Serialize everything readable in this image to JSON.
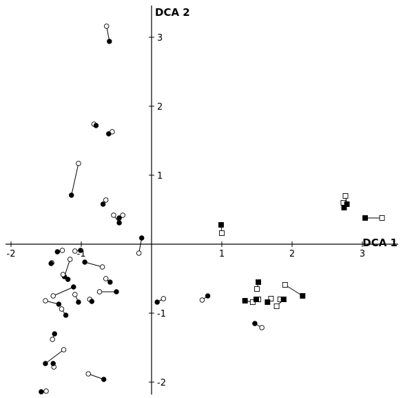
{
  "chart_data": {
    "type": "scatter",
    "title": "",
    "xlabel": "DCA 1",
    "ylabel": "DCA 2",
    "xlim": [
      -2,
      3.4
    ],
    "ylim": [
      -2,
      3.4
    ],
    "xticks": [
      -2,
      -1,
      1,
      2,
      3
    ],
    "yticks": [
      3,
      2,
      1,
      -1,
      -2
    ],
    "xtick_labels": [
      "-2",
      "-1",
      "1",
      "2",
      "3"
    ],
    "ytick_labels": [
      "3",
      "2",
      "1",
      "-1",
      "-2"
    ],
    "grid": false,
    "legend": "none",
    "marker_fill_colors": {
      "filled": "#000000",
      "open": "#ffffff"
    },
    "pairs": [
      {
        "shape": "circle",
        "filled": [
          -0.6,
          2.94
        ],
        "open": [
          -0.64,
          3.16
        ]
      },
      {
        "shape": "circle",
        "filled": [
          -0.79,
          1.72
        ],
        "open": [
          -0.82,
          1.74
        ]
      },
      {
        "shape": "circle",
        "filled": [
          -0.61,
          1.6
        ],
        "open": [
          -0.56,
          1.63
        ]
      },
      {
        "shape": "circle",
        "filled": [
          -1.14,
          0.71
        ],
        "open": [
          -1.04,
          1.17
        ]
      },
      {
        "shape": "circle",
        "filled": [
          -0.69,
          0.58
        ],
        "open": [
          -0.65,
          0.64
        ]
      },
      {
        "shape": "circle",
        "filled": [
          -0.46,
          0.31
        ],
        "open": [
          -0.54,
          0.42
        ]
      },
      {
        "shape": "circle",
        "filled": [
          -0.46,
          0.38
        ],
        "open": [
          -0.41,
          0.42
        ]
      },
      {
        "shape": "circle",
        "filled": [
          -0.14,
          0.09
        ],
        "open": [
          -0.18,
          -0.13
        ]
      },
      {
        "shape": "circle",
        "filled": [
          -1.01,
          -0.09
        ],
        "open": [
          -1.09,
          -0.1
        ]
      },
      {
        "shape": "circle",
        "filled": [
          -1.34,
          -0.11
        ],
        "open": [
          -1.27,
          -0.09
        ]
      },
      {
        "shape": "circle",
        "filled": [
          -1.43,
          -0.28
        ],
        "open": [
          -1.42,
          -0.27
        ]
      },
      {
        "shape": "circle",
        "filled": [
          -0.95,
          -0.26
        ],
        "open": [
          -0.7,
          -0.33
        ]
      },
      {
        "shape": "circle",
        "filled": [
          -1.24,
          -0.47
        ],
        "open": [
          -1.16,
          -0.22
        ]
      },
      {
        "shape": "circle",
        "filled": [
          -1.19,
          -0.51
        ],
        "open": [
          -1.26,
          -0.44
        ]
      },
      {
        "shape": "circle",
        "filled": [
          -0.59,
          -0.55
        ],
        "open": [
          -0.65,
          -0.5
        ]
      },
      {
        "shape": "circle",
        "filled": [
          -1.11,
          -0.62
        ],
        "open": [
          -1.4,
          -0.75
        ]
      },
      {
        "shape": "circle",
        "filled": [
          -0.5,
          -0.69
        ],
        "open": [
          -0.74,
          -0.69
        ]
      },
      {
        "shape": "circle",
        "filled": [
          -1.04,
          -0.84
        ],
        "open": [
          -1.09,
          -0.73
        ]
      },
      {
        "shape": "circle",
        "filled": [
          -1.32,
          -0.87
        ],
        "open": [
          -1.51,
          -0.82
        ]
      },
      {
        "shape": "circle",
        "filled": [
          -1.22,
          -1.03
        ],
        "open": [
          -1.28,
          -0.94
        ]
      },
      {
        "shape": "circle",
        "filled": [
          -0.85,
          -0.83
        ],
        "open": [
          -0.88,
          -0.8
        ]
      },
      {
        "shape": "circle",
        "filled": [
          -1.38,
          -1.3
        ],
        "open": [
          -1.41,
          -1.38
        ]
      },
      {
        "shape": "circle",
        "filled": [
          -1.51,
          -1.73
        ],
        "open": [
          -1.25,
          -1.53
        ]
      },
      {
        "shape": "circle",
        "filled": [
          -1.4,
          -1.73
        ],
        "open": [
          -1.39,
          -1.78
        ]
      },
      {
        "shape": "circle",
        "filled": [
          -0.68,
          -1.96
        ],
        "open": [
          -0.9,
          -1.88
        ]
      },
      {
        "shape": "circle",
        "filled": [
          -1.57,
          -2.14
        ],
        "open": [
          -1.5,
          -2.13
        ]
      },
      {
        "shape": "circle",
        "filled": [
          0.08,
          -0.84
        ],
        "open": [
          0.17,
          -0.79
        ]
      },
      {
        "shape": "circle",
        "filled": [
          0.8,
          -0.75
        ],
        "open": [
          0.72,
          -0.81
        ]
      },
      {
        "shape": "circle",
        "filled": [
          1.47,
          -1.15
        ],
        "open": [
          1.57,
          -1.21
        ]
      },
      {
        "shape": "square",
        "filled": [
          0.99,
          0.28
        ],
        "open": [
          1.0,
          0.16
        ]
      },
      {
        "shape": "square",
        "filled": [
          2.74,
          0.53
        ],
        "open": [
          2.73,
          0.6
        ]
      },
      {
        "shape": "square",
        "filled": [
          2.78,
          0.58
        ],
        "open": [
          2.76,
          0.7
        ]
      },
      {
        "shape": "square",
        "filled": [
          3.04,
          0.38
        ],
        "open": [
          3.28,
          0.38
        ]
      },
      {
        "shape": "square",
        "filled": [
          1.52,
          -0.55
        ],
        "open": [
          1.5,
          -0.65
        ]
      },
      {
        "shape": "square",
        "filled": [
          1.33,
          -0.82
        ],
        "open": [
          1.44,
          -0.84
        ]
      },
      {
        "shape": "square",
        "filled": [
          1.49,
          -0.8
        ],
        "open": [
          1.52,
          -0.8
        ]
      },
      {
        "shape": "square",
        "filled": [
          1.65,
          -0.84
        ],
        "open": [
          1.7,
          -0.79
        ]
      },
      {
        "shape": "square",
        "filled": [
          1.88,
          -0.8
        ],
        "open": [
          1.83,
          -0.8
        ]
      },
      {
        "shape": "square",
        "filled": [
          1.88,
          -0.8
        ],
        "open": [
          1.78,
          -0.9
        ]
      },
      {
        "shape": "square",
        "filled": [
          2.15,
          -0.75
        ],
        "open": [
          1.9,
          -0.59
        ]
      }
    ]
  }
}
